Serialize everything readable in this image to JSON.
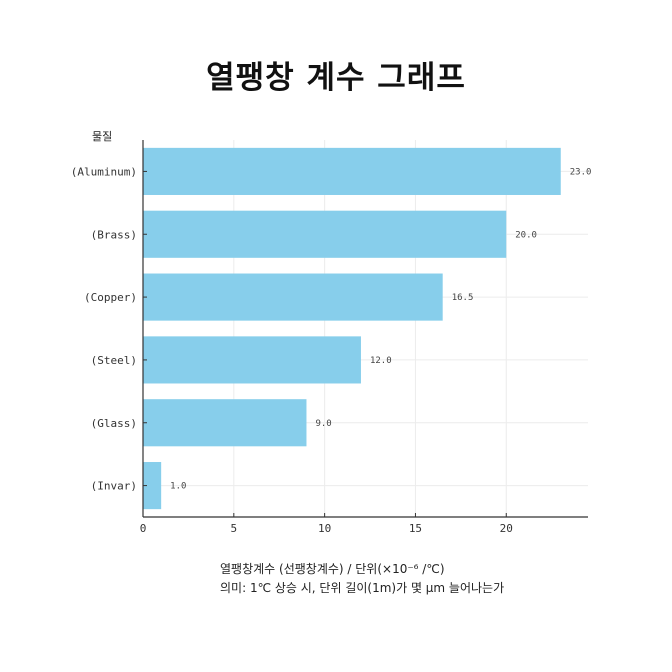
{
  "chart_data": {
    "type": "bar",
    "orientation": "horizontal",
    "title": "열팽창 계수 그래프",
    "ylabel": "물질",
    "categories": [
      "(Aluminum)",
      "(Brass)",
      "(Copper)",
      "(Steel)",
      "(Glass)",
      "(Invar)"
    ],
    "values": [
      23.0,
      20.0,
      16.5,
      12.0,
      9.0,
      1.0
    ],
    "value_labels": [
      "23.0",
      "20.0",
      "16.5",
      "12.0",
      "9.0",
      "1.0"
    ],
    "xlim": [
      0,
      24.5
    ],
    "xticks": [
      0,
      5,
      10,
      15,
      20
    ],
    "xtick_labels": [
      "0",
      "5",
      "10",
      "15",
      "20"
    ],
    "grid": true,
    "bar_color": "#87ceeb"
  },
  "caption": {
    "line1": "열팽창계수 (선팽창계수) / 단위(×10⁻⁶ /℃)",
    "line2": "의미: 1℃ 상승 시, 단위 길이(1m)가 몇 μm 늘어나는가"
  }
}
